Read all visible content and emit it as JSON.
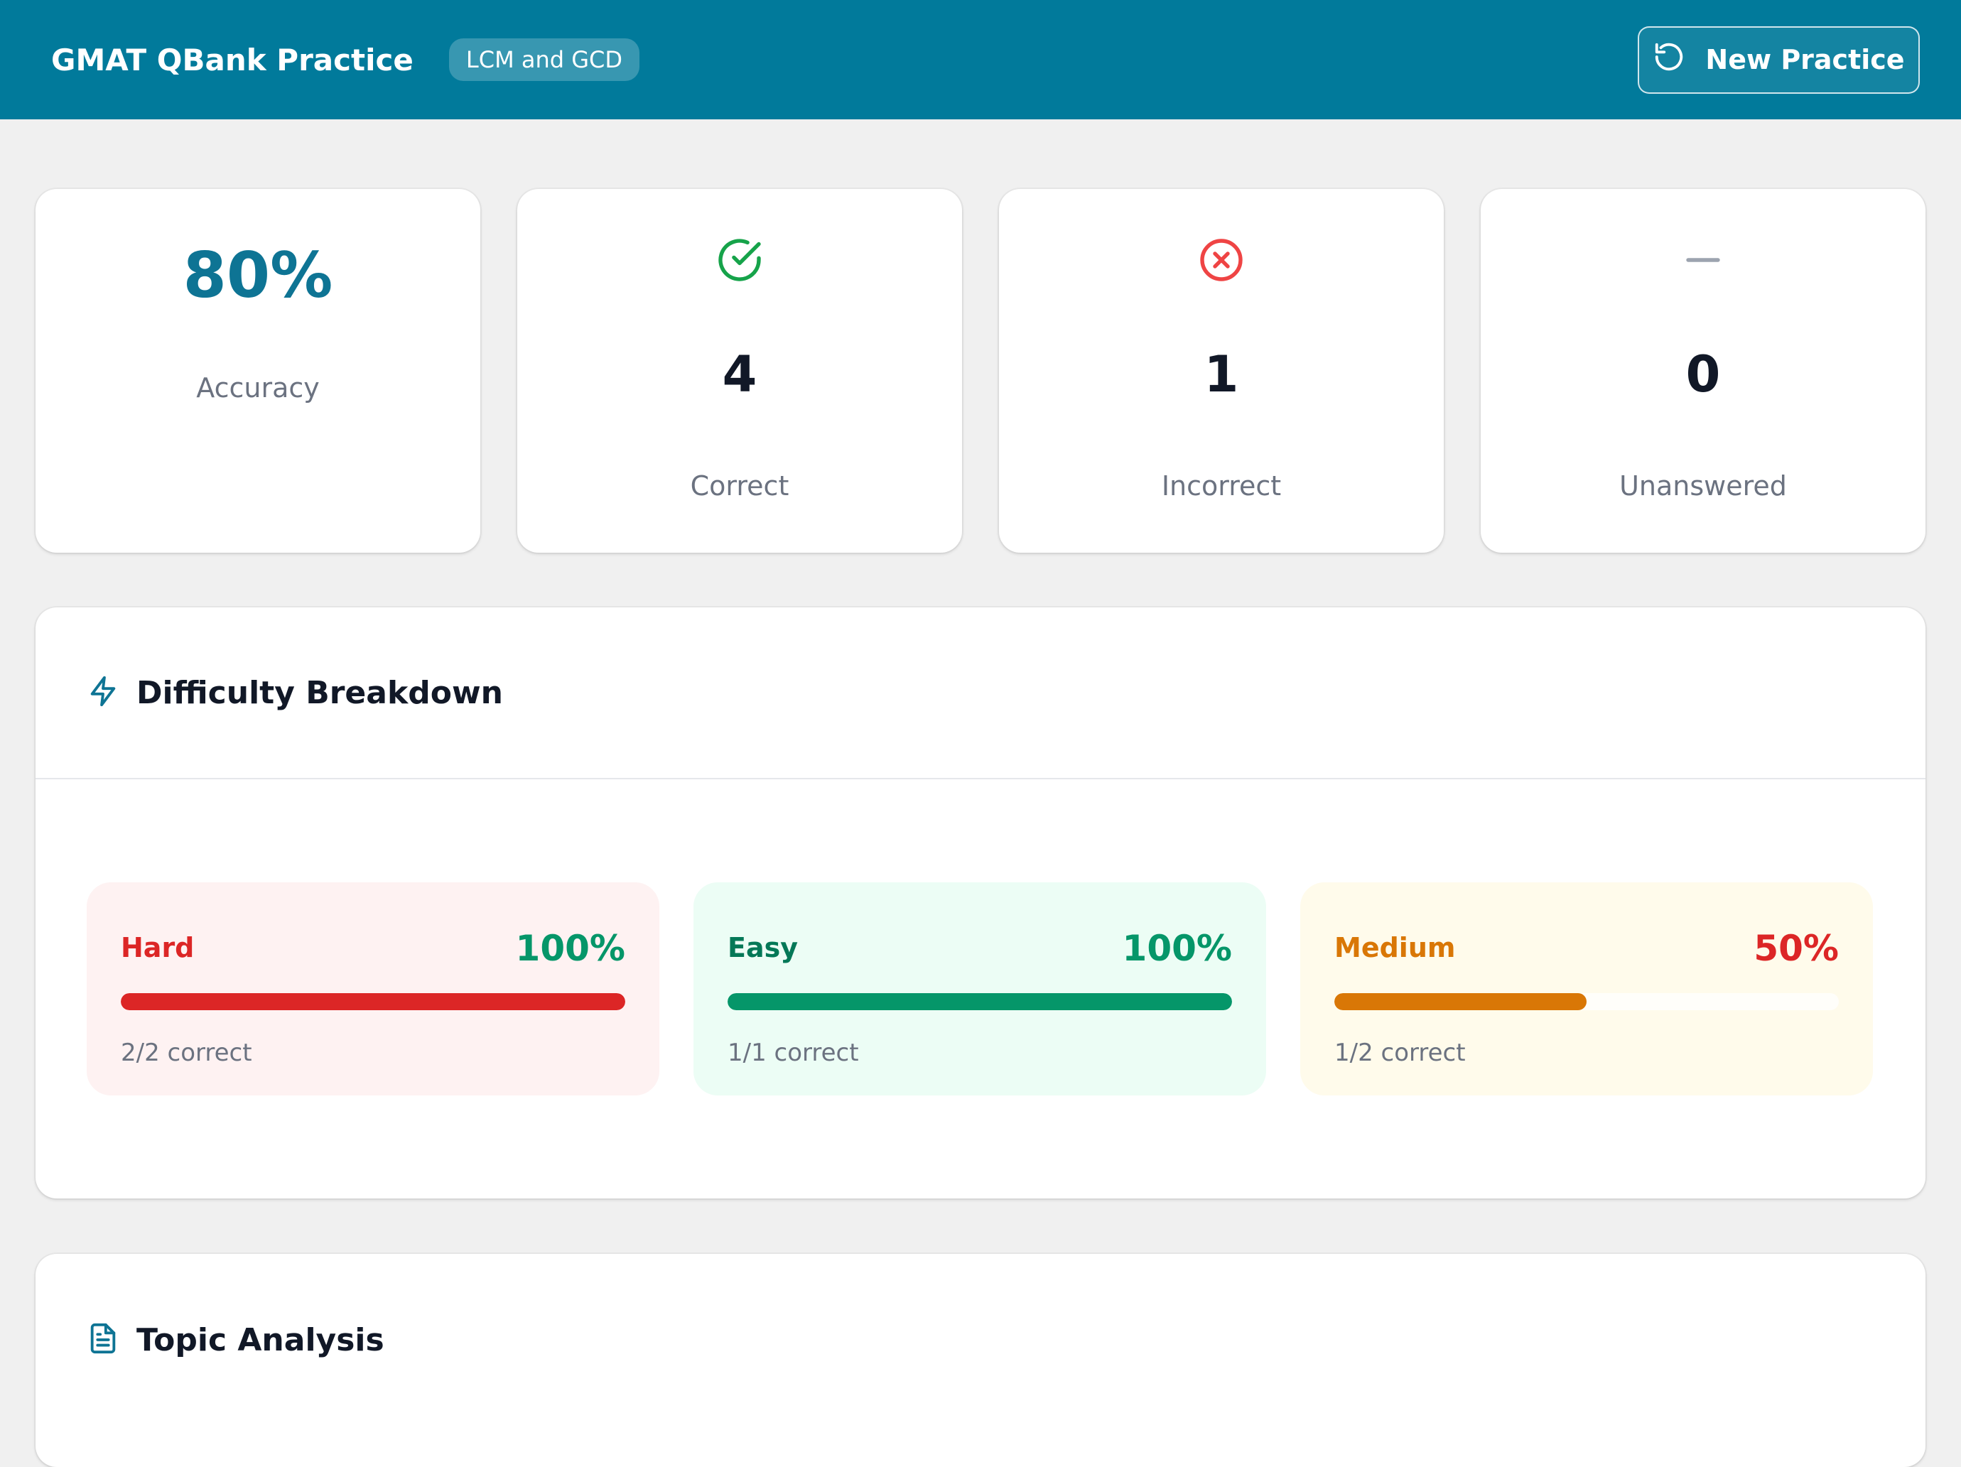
{
  "header": {
    "app_title": "GMAT QBank Practice",
    "topic": "LCM and GCD",
    "new_practice_label": "New Practice"
  },
  "stats": {
    "accuracy_value": "80%",
    "accuracy_label": "Accuracy",
    "correct_value": "4",
    "correct_label": "Correct",
    "incorrect_value": "1",
    "incorrect_label": "Incorrect",
    "unanswered_value": "0",
    "unanswered_label": "Unanswered"
  },
  "difficulty": {
    "title": "Difficulty Breakdown",
    "cards": [
      {
        "name": "Hard",
        "percent": "100%",
        "fill_fraction": 1.0,
        "detail": "2/2 correct",
        "bg": "#fef2f2",
        "name_color": "#dc2626",
        "pct_color": "#059669",
        "bar_color": "#dc2626"
      },
      {
        "name": "Easy",
        "percent": "100%",
        "fill_fraction": 1.0,
        "detail": "1/1 correct",
        "bg": "#ecfdf5",
        "name_color": "#047857",
        "pct_color": "#059669",
        "bar_color": "#059669"
      },
      {
        "name": "Medium",
        "percent": "50%",
        "fill_fraction": 0.5,
        "detail": "1/2 correct",
        "bg": "#fffbeb",
        "name_color": "#d97706",
        "pct_color": "#dc2626",
        "bar_color": "#d97706"
      }
    ]
  },
  "topic_analysis": {
    "title": "Topic Analysis"
  },
  "colors": {
    "brand": "#017a9b",
    "correct": "#16a34a",
    "incorrect": "#ef4444"
  },
  "icons": {
    "new_practice": "refresh-icon",
    "correct": "check-circle-icon",
    "incorrect": "x-circle-icon",
    "unanswered": "dash-icon",
    "difficulty": "lightning-icon",
    "topic": "document-icon"
  }
}
